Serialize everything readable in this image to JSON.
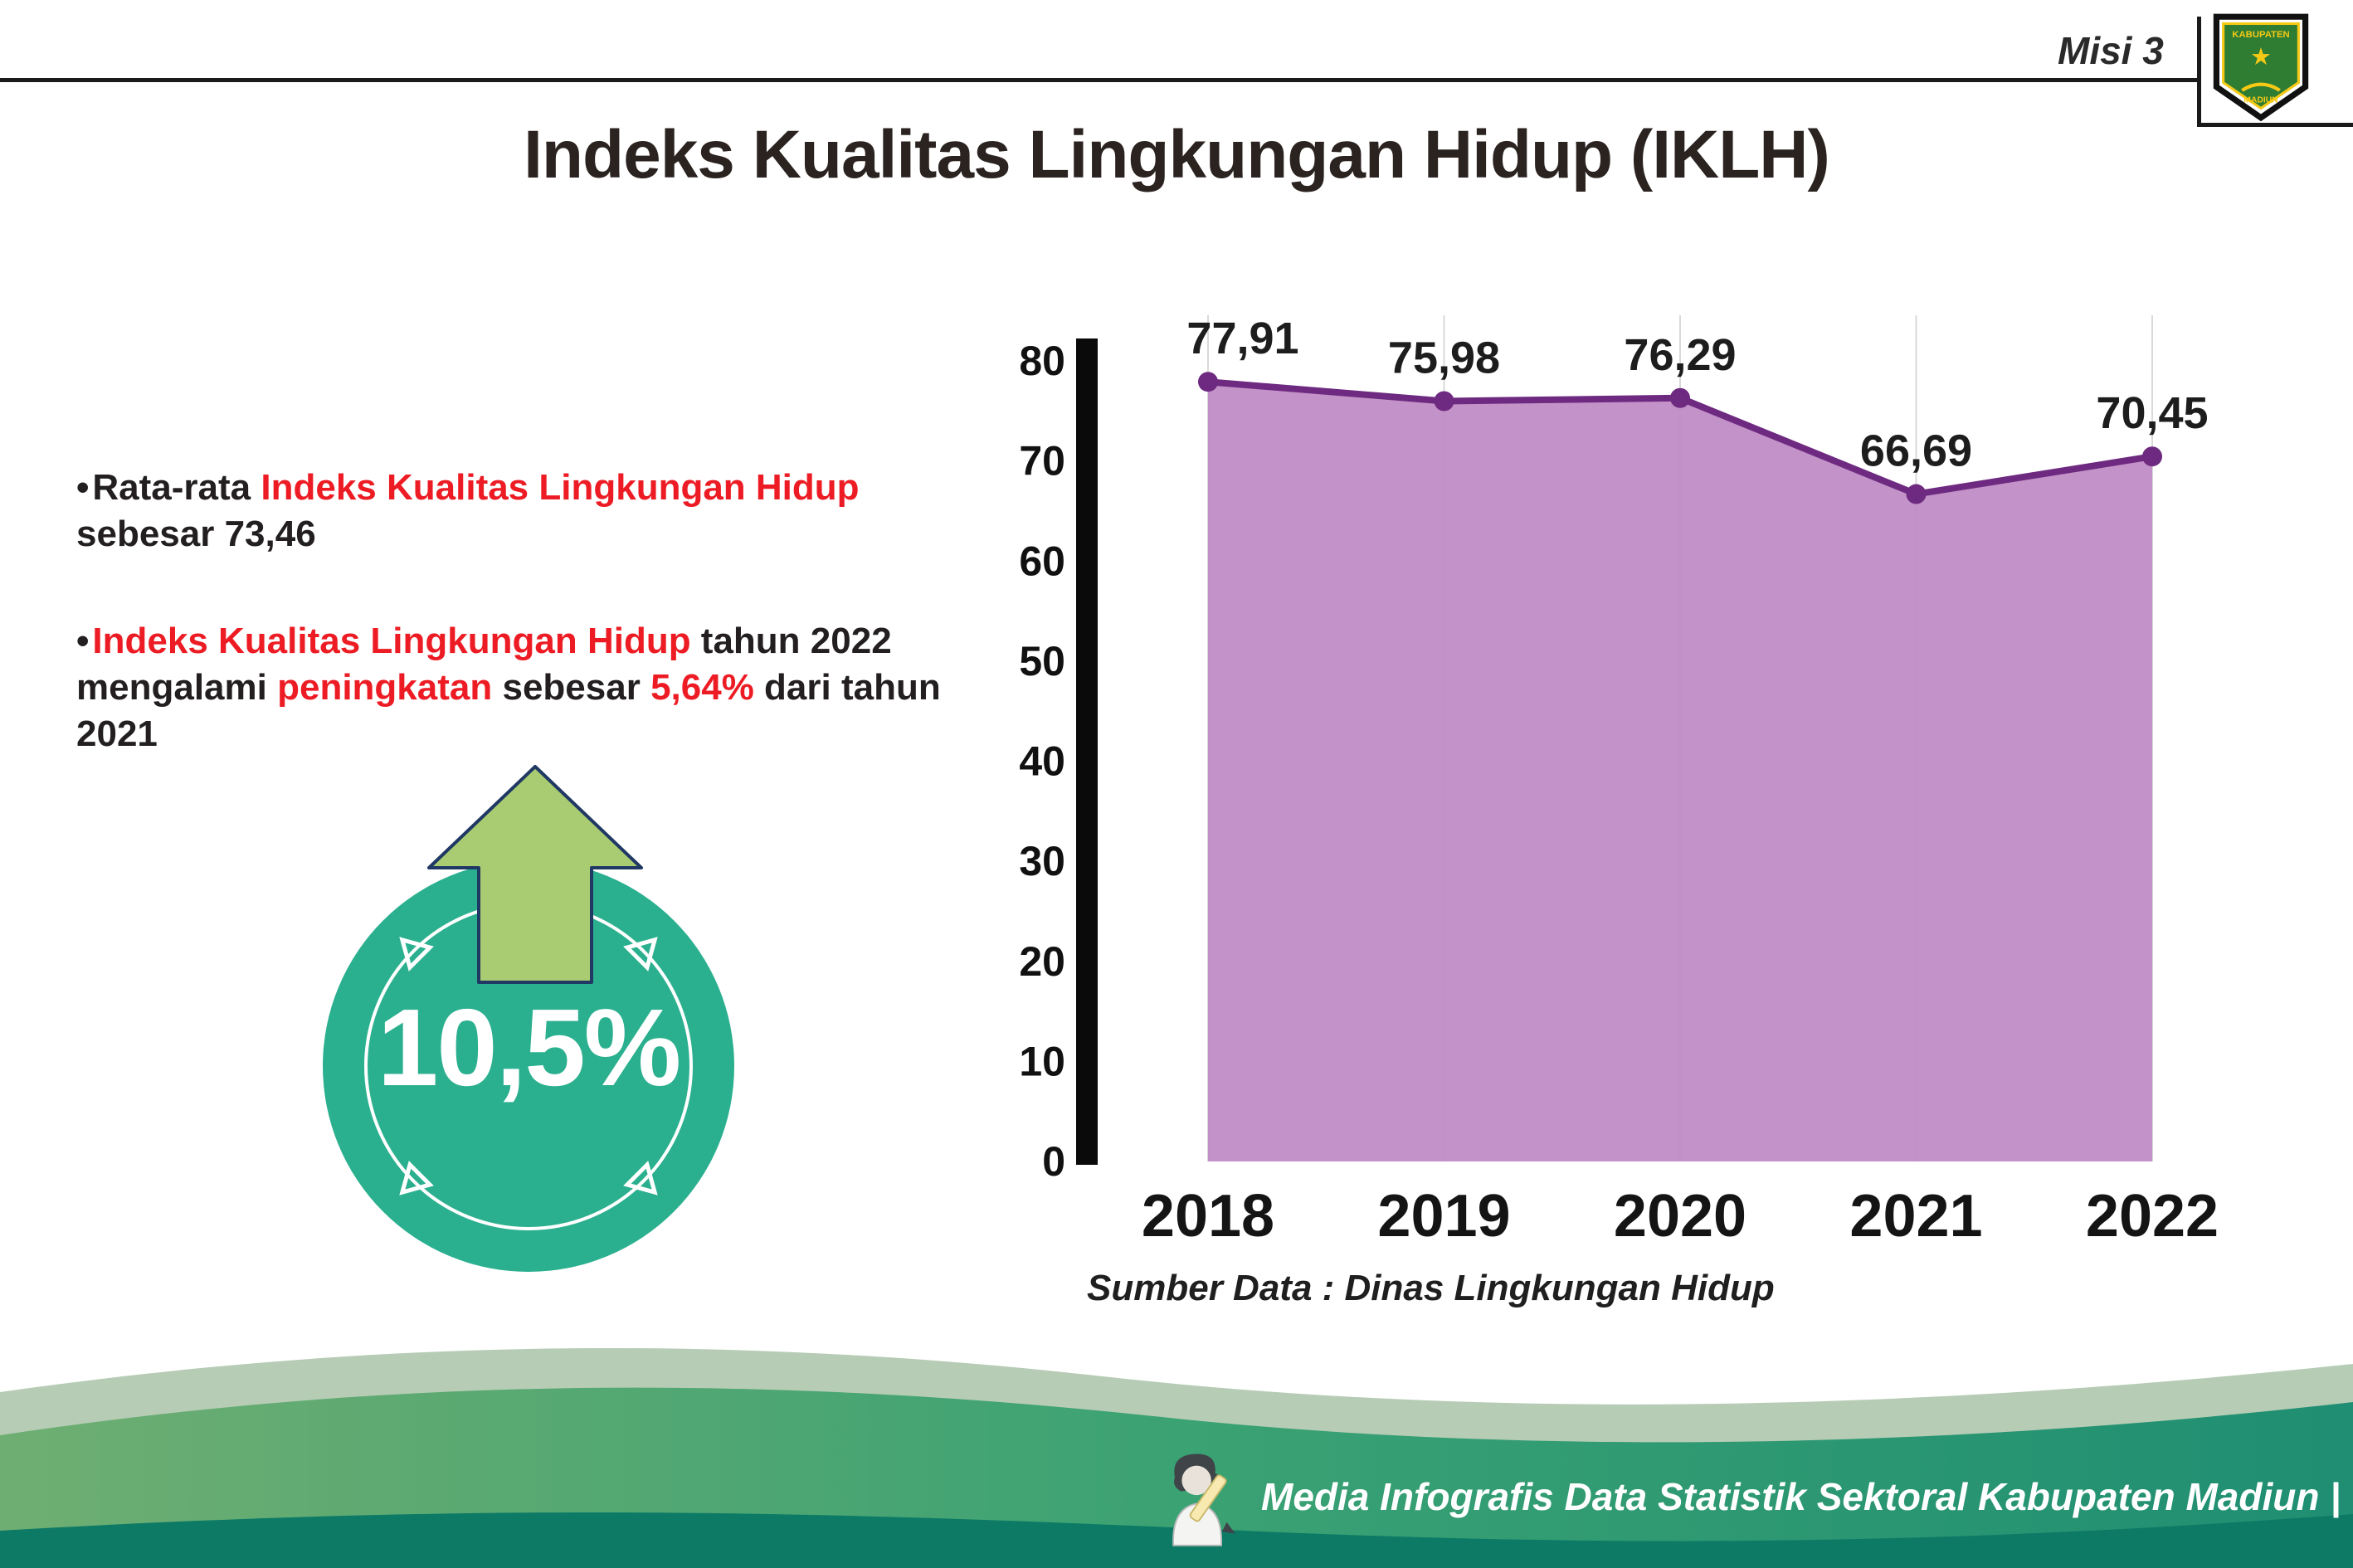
{
  "header": {
    "misi_label": "Misi 3",
    "title": "Indeks Kualitas Lingkungan Hidup (IKLH)",
    "logo": {
      "text_top": "KABUPATEN",
      "text_bottom": "MADIUN",
      "star": "★"
    }
  },
  "bullet_char": "•",
  "bullets": [
    {
      "segments": [
        {
          "text": "Rata-rata ",
          "color": "#231f20"
        },
        {
          "text": "Indeks Kualitas Lingkungan Hidup",
          "color": "#ed1c24"
        },
        {
          "text": " sebesar 73,46",
          "color": "#231f20"
        }
      ]
    },
    {
      "segments": [
        {
          "text": "Indeks Kualitas Lingkungan Hidup",
          "color": "#ed1c24"
        },
        {
          "text": " tahun 2022 mengalami ",
          "color": "#231f20"
        },
        {
          "text": "peningkatan",
          "color": "#ed1c24"
        },
        {
          "text": " sebesar ",
          "color": "#231f20"
        },
        {
          "text": "5,64%",
          "color": "#ed1c24"
        },
        {
          "text": " dari tahun 2021",
          "color": "#231f20"
        }
      ]
    }
  ],
  "badge": {
    "value": "10,5%",
    "circle_color": "#2bb08f",
    "arrow_color": "#a9cb71",
    "arrow_outline": "#1f3864"
  },
  "chart_data": {
    "type": "area",
    "categories": [
      "2018",
      "2019",
      "2020",
      "2021",
      "2022"
    ],
    "values": [
      77.91,
      75.98,
      76.29,
      66.69,
      70.45
    ],
    "value_labels": [
      "77,91",
      "75,98",
      "76,29",
      "66,69",
      "70,45"
    ],
    "ylim": [
      0,
      80
    ],
    "yticks": [
      0,
      10,
      20,
      30,
      40,
      50,
      60,
      70,
      80
    ],
    "grid": "vertical-light",
    "legend": "none",
    "line_color": "#6e2a80",
    "fill_color": "#c08cc5",
    "axis_color": "#0a0a0a",
    "source_note": "Sumber Data : Dinas Lingkungan Hidup"
  },
  "footer": {
    "text": "Media Infografis Data Statistik Sektoral Kabupaten Madiun |"
  }
}
